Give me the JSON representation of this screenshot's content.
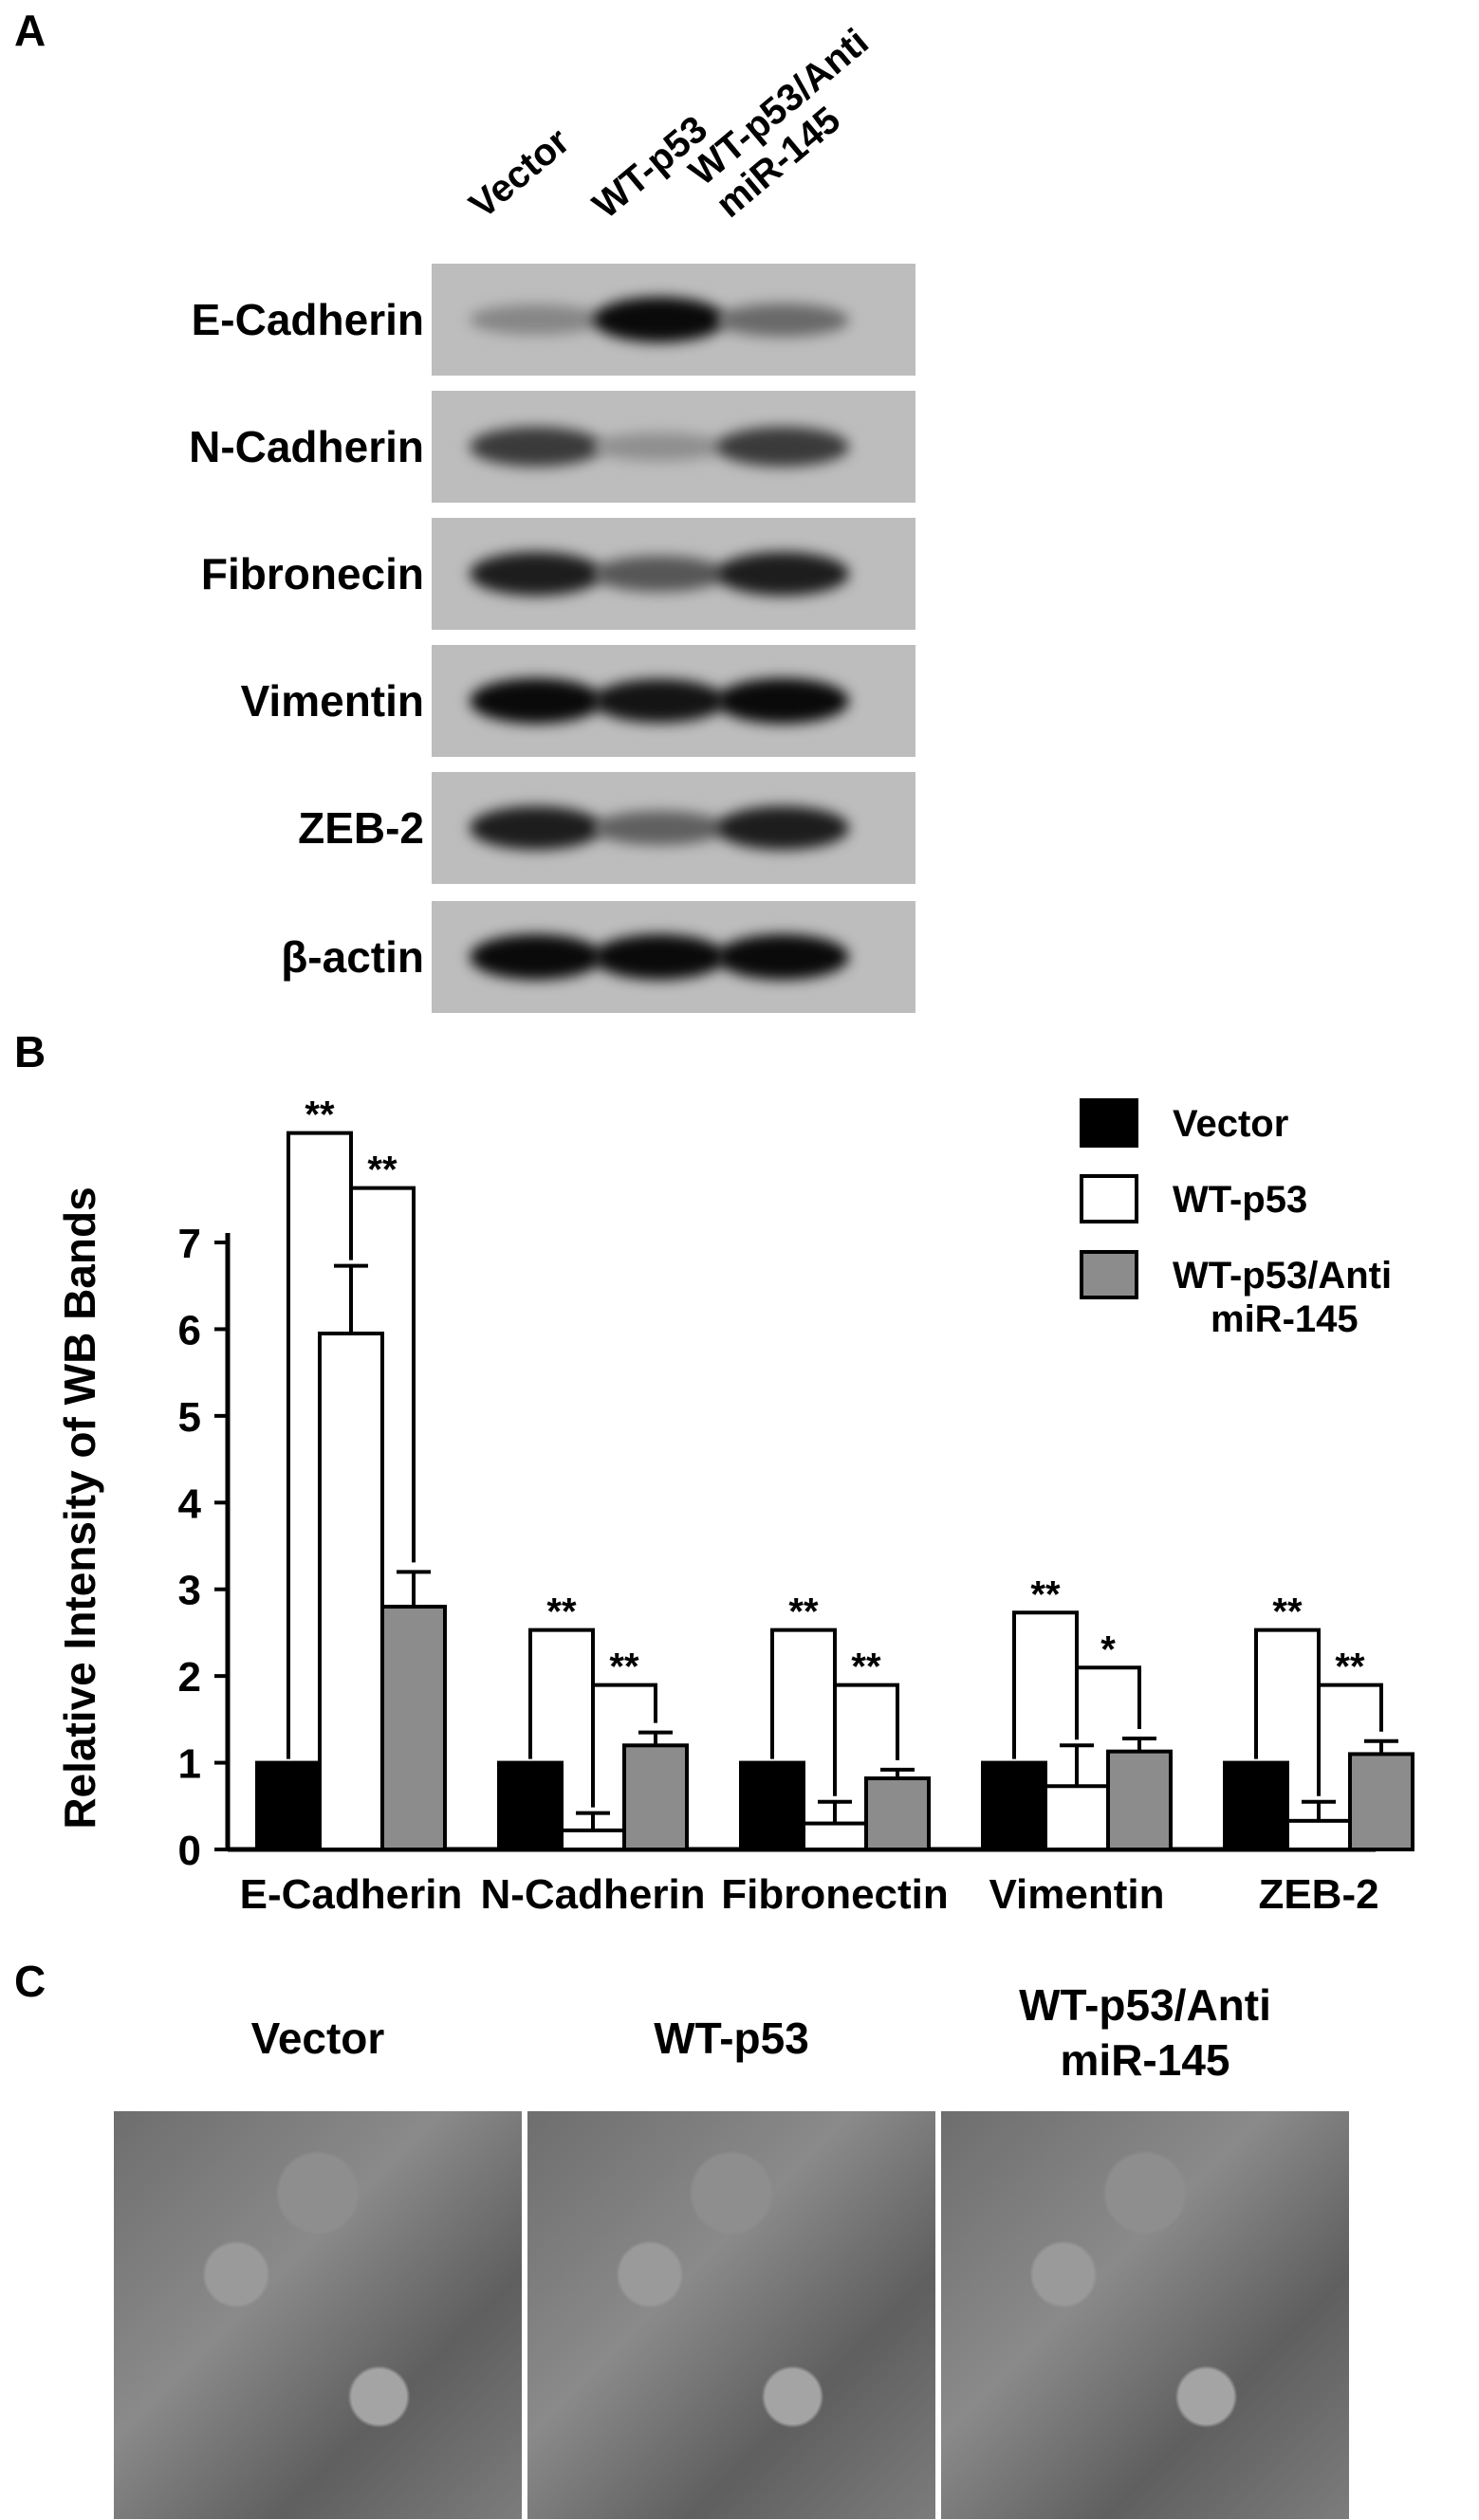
{
  "panels": {
    "a": "A",
    "b": "B",
    "c": "C"
  },
  "blot": {
    "lanes": [
      "Vector",
      "WT-p53",
      "WT-p53/Anti\nmiR-145"
    ],
    "rows": [
      {
        "label": "E-Cadherin",
        "intensity": [
          0.35,
          1.0,
          0.5
        ]
      },
      {
        "label": "N-Cadherin",
        "intensity": [
          0.75,
          0.3,
          0.75
        ]
      },
      {
        "label": "Fibronecin",
        "intensity": [
          0.9,
          0.6,
          0.9
        ]
      },
      {
        "label": "Vimentin",
        "intensity": [
          1.0,
          0.95,
          1.0
        ]
      },
      {
        "label": "ZEB-2",
        "intensity": [
          0.9,
          0.55,
          0.9
        ]
      },
      {
        "label": "β-actin",
        "intensity": [
          1.0,
          1.0,
          1.0
        ]
      }
    ]
  },
  "chart_data": {
    "type": "bar",
    "categories": [
      "E-Cadherin",
      "N-Cadherin",
      "Fibronectin",
      "Vimentin",
      "ZEB-2"
    ],
    "series": [
      {
        "name": "Vector",
        "values": [
          1.0,
          1.0,
          1.0,
          1.0,
          1.0
        ],
        "errors": [
          0,
          0,
          0,
          0,
          0
        ],
        "color": "#000000"
      },
      {
        "name": "WT-p53",
        "values": [
          5.95,
          0.22,
          0.3,
          0.73,
          0.33
        ],
        "errors": [
          0.78,
          0.2,
          0.25,
          0.47,
          0.22
        ],
        "color": "#ffffff"
      },
      {
        "name": "WT-p53/Anti\nmiR-145",
        "values": [
          2.8,
          1.2,
          0.82,
          1.13,
          1.1
        ],
        "errors": [
          0.4,
          0.15,
          0.1,
          0.15,
          0.15
        ],
        "color": "#8c8c8c"
      }
    ],
    "significance": [
      {
        "left": "**",
        "right": "**"
      },
      {
        "left": "**",
        "right": "**"
      },
      {
        "left": "**",
        "right": "**"
      },
      {
        "left": "**",
        "right": "*"
      },
      {
        "left": "**",
        "right": "**"
      }
    ],
    "ylabel": "Relative Intensity of WB Bands",
    "xlabel": "",
    "ylim": [
      0,
      7
    ],
    "yticks": [
      0,
      1,
      2,
      3,
      4,
      5,
      6,
      7
    ],
    "legend": "top-right"
  },
  "photos": {
    "titles": [
      "Vector",
      "WT-p53",
      "WT-p53/Anti\nmiR-145"
    ]
  }
}
